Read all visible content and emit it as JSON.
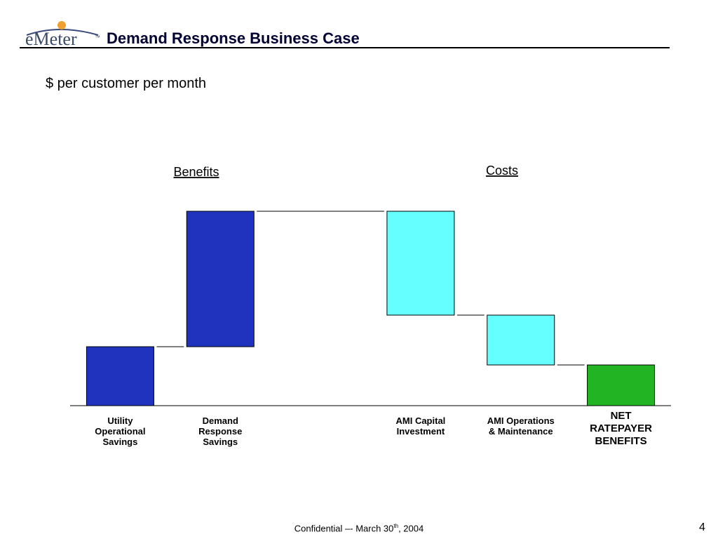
{
  "header": {
    "logo": "eMeter",
    "logo_tm": "™",
    "title": "Demand Response Business Case"
  },
  "chart_data": {
    "type": "waterfall",
    "subtitle": "$ per customer per month",
    "annotations": [
      "Benefits",
      "Costs"
    ],
    "categories": [
      "Utility Operational Savings",
      "Demand Response Savings",
      null,
      "AMI Capital Investment",
      "AMI Operations & Maintenance",
      "NET RATEPAYER BENEFITS"
    ],
    "values": [
      8.4,
      19.3,
      null,
      -14.8,
      -7.1,
      5.8
    ],
    "total": [
      false,
      false,
      false,
      false,
      false,
      true
    ],
    "colors": [
      "#1f33bf",
      "#1f33bf",
      null,
      "#66ffff",
      "#66ffff",
      "#22b422"
    ],
    "ylim": [
      0,
      30
    ]
  },
  "footer": {
    "text": "Confidential –- March 30",
    "sup": "th",
    "after": ", 2004",
    "page": "4"
  }
}
